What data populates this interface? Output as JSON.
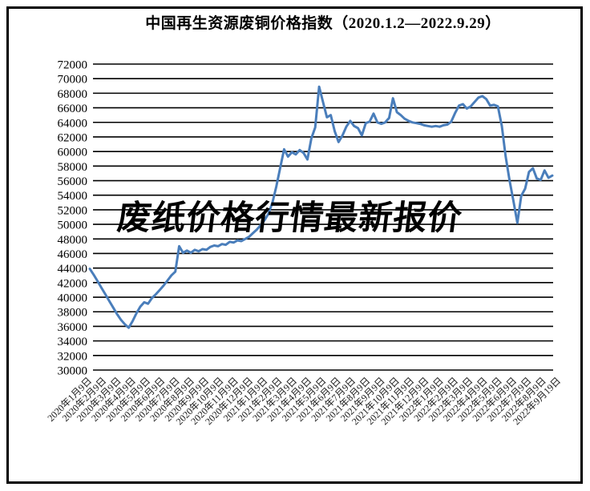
{
  "page": {
    "background": "#ffffff",
    "frame_color": "#000000"
  },
  "watermark": {
    "text": "废纸价格行情最新报价",
    "color": "#000000"
  },
  "chart_data": {
    "type": "line",
    "title": "中国再生资源废铜价格指数（2020.1.2—2022.9.29）",
    "xlabel": "",
    "ylabel": "",
    "ylim": [
      30000,
      72000
    ],
    "y_tick_step": 2000,
    "y_ticks": [
      72000,
      70000,
      68000,
      66000,
      64000,
      62000,
      60000,
      58000,
      56000,
      54000,
      52000,
      50000,
      48000,
      46000,
      44000,
      42000,
      40000,
      38000,
      36000,
      34000,
      32000,
      30000
    ],
    "grid": "horizontal",
    "legend_position": "none",
    "line_color": "#4a7ebb",
    "gridline_color": "#000000",
    "x_labels": [
      "2020年1月9日",
      "2020年2月9日",
      "2020年3月9日",
      "2020年4月9日",
      "2020年5月9日",
      "2020年6月9日",
      "2020年7月9日",
      "2020年8月9日",
      "2020年9月9日",
      "2020年10月9日",
      "2020年11月9日",
      "2020年12月9日",
      "2021年1月9日",
      "2021年2月9日",
      "2021年3月9日",
      "2021年4月9日",
      "2021年5月9日",
      "2021年6月9日",
      "2021年7月9日",
      "2021年8月9日",
      "2021年9月9日",
      "2021年10月9日",
      "2021年11月9日",
      "2021年12月9日",
      "2022年1月9日",
      "2022年2月9日",
      "2022年3月9日",
      "2022年4月9日",
      "2022年5月9日",
      "2022年6月9日",
      "2022年7月9日",
      "2022年8月9日",
      "2022年9月19日"
    ],
    "series": [
      {
        "name": "废铜价格指数",
        "values": [
          43900,
          43100,
          42200,
          41300,
          40400,
          39500,
          38600,
          37700,
          36900,
          36300,
          35800,
          36700,
          37800,
          38700,
          39300,
          39100,
          39900,
          40400,
          41000,
          41600,
          42300,
          43000,
          43500,
          47000,
          46100,
          46400,
          46100,
          46500,
          46300,
          46600,
          46500,
          46900,
          47100,
          47000,
          47300,
          47200,
          47600,
          47500,
          47800,
          47700,
          48000,
          48300,
          48800,
          49300,
          49900,
          50600,
          51500,
          53000,
          55200,
          57800,
          60300,
          59300,
          59900,
          59600,
          60200,
          59800,
          58900,
          61800,
          63300,
          68900,
          66800,
          64700,
          65000,
          62800,
          61300,
          62200,
          63400,
          64200,
          63500,
          63200,
          62200,
          63900,
          64100,
          65200,
          64000,
          63800,
          64000,
          64600,
          67300,
          65400,
          65000,
          64500,
          64200,
          64000,
          63900,
          63800,
          63600,
          63500,
          63400,
          63500,
          63400,
          63600,
          63700,
          64100,
          65300,
          66300,
          66500,
          65900,
          66200,
          66800,
          67400,
          67600,
          67200,
          66300,
          66400,
          66200,
          63500,
          59300,
          56000,
          53200,
          50200,
          53900,
          54900,
          57200,
          57700,
          56300,
          56100,
          57400,
          56400,
          56700
        ]
      }
    ]
  }
}
